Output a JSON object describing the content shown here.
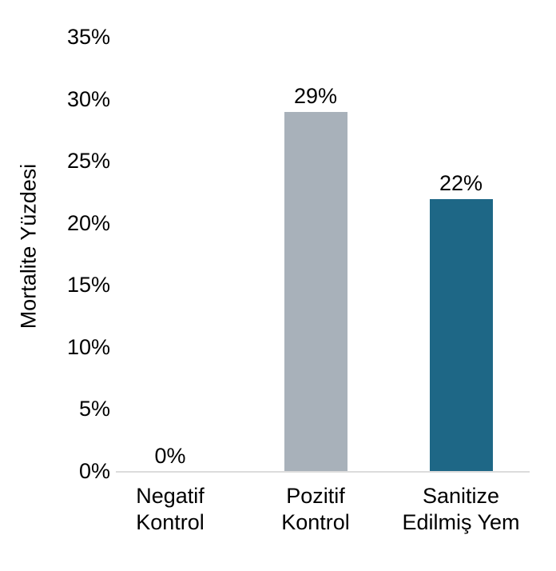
{
  "chart_data": {
    "type": "bar",
    "title": "",
    "xlabel": "",
    "ylabel": "Mortalite Yüzdesi",
    "categories": [
      "Negatif Kontrol",
      "Pozitif Kontrol",
      "Sanitize Edilmiş Yem"
    ],
    "category_lines": [
      [
        "Negatif",
        "Kontrol"
      ],
      [
        "Pozitif",
        "Kontrol"
      ],
      [
        "Sanitize",
        "Edilmiş Yem"
      ]
    ],
    "values": [
      0,
      29,
      22
    ],
    "value_labels": [
      "0%",
      "29%",
      "22%"
    ],
    "bar_colors": [
      "#a8b1ba",
      "#a8b1ba",
      "#1e6786"
    ],
    "yticks": [
      "35%",
      "30%",
      "25%",
      "20%",
      "15%",
      "10%",
      "5%",
      "0%"
    ],
    "ylim": [
      0,
      35
    ],
    "grid": false,
    "legend": "none",
    "axis_color": "#dcdcdc",
    "text_color": "#000000",
    "background_color": "#ffffff"
  }
}
